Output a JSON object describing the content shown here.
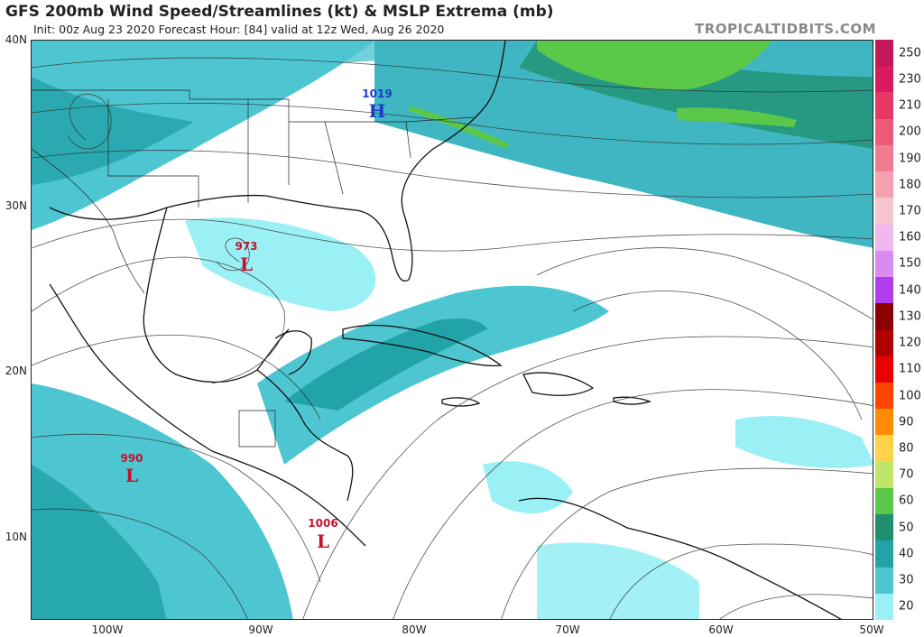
{
  "header": {
    "title": "GFS 200mb Wind Speed/Streamlines (kt) & MSLP Extrema (mb)",
    "subtitle": "Init: 00z Aug 23 2020   Forecast Hour: [84]   valid at 12z Wed, Aug 26 2020",
    "credit": "TROPICALTIDBITS.COM"
  },
  "axes": {
    "lat_labels": [
      "40N",
      "30N",
      "20N",
      "10N"
    ],
    "lon_labels": [
      "100W",
      "90W",
      "80W",
      "70W",
      "60W",
      "50W"
    ]
  },
  "colorbar": {
    "ticks": [
      "250",
      "230",
      "210",
      "200",
      "190",
      "180",
      "170",
      "160",
      "150",
      "140",
      "130",
      "120",
      "110",
      "100",
      "90",
      "80",
      "70",
      "60",
      "50",
      "40",
      "30",
      "20"
    ],
    "colors": [
      "#c2185b",
      "#d81b60",
      "#e53965",
      "#ec5a77",
      "#f07b8f",
      "#f4a0b0",
      "#f5c5d0",
      "#f0b6f0",
      "#d88bf0",
      "#b03cf0",
      "#8c0000",
      "#b00000",
      "#e60000",
      "#ff4500",
      "#ff8c00",
      "#ffd24a",
      "#bfe66a",
      "#5bc84a",
      "#1f8f6e",
      "#22a3a8",
      "#4ec6d2",
      "#9af0f4"
    ]
  },
  "systems": [
    {
      "type": "L",
      "pressure": "973"
    },
    {
      "type": "H",
      "pressure": "1019"
    },
    {
      "type": "L",
      "pressure": "990"
    },
    {
      "type": "L",
      "pressure": "1006"
    }
  ]
}
